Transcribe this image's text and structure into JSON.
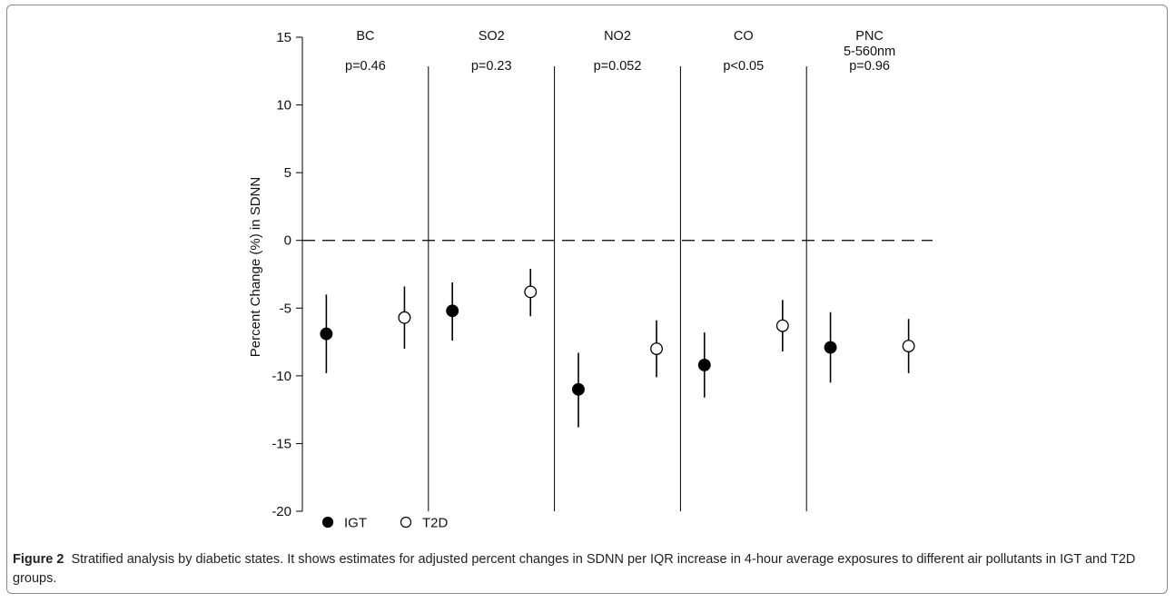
{
  "figure": {
    "label": "Figure 2",
    "caption": "Stratified analysis by diabetic states. It shows estimates for adjusted percent changes in SDNN per IQR increase in 4-hour average exposures to different air pollutants in IGT and T2D groups."
  },
  "chart_data": {
    "type": "scatter",
    "ylabel": "Percent Change (%) in SDNN",
    "ylim": [
      -20,
      15
    ],
    "yticks": [
      15,
      10,
      5,
      0,
      -5,
      -10,
      -15,
      -20
    ],
    "reference_line": 0,
    "legend": {
      "placement": "bottom-left",
      "entries": [
        "IGT",
        "T2D"
      ]
    },
    "panels": [
      {
        "name": "BC",
        "name2": "",
        "pvalue": "p=0.46"
      },
      {
        "name": "SO2",
        "name2": "",
        "pvalue": "p=0.23"
      },
      {
        "name": "NO2",
        "name2": "",
        "pvalue": "p=0.052"
      },
      {
        "name": "CO",
        "name2": "",
        "pvalue": "p<0.05"
      },
      {
        "name": "PNC",
        "name2": "5-560nm",
        "pvalue": "p=0.96"
      }
    ],
    "series": [
      {
        "name": "IGT",
        "marker": "filled-circle",
        "points": [
          {
            "panel": "BC",
            "est": -6.9,
            "lo": -9.8,
            "hi": -4.0
          },
          {
            "panel": "SO2",
            "est": -5.2,
            "lo": -7.4,
            "hi": -3.1
          },
          {
            "panel": "NO2",
            "est": -11.0,
            "lo": -13.8,
            "hi": -8.3
          },
          {
            "panel": "CO",
            "est": -9.2,
            "lo": -11.6,
            "hi": -6.8
          },
          {
            "panel": "PNC",
            "est": -7.9,
            "lo": -10.5,
            "hi": -5.3
          }
        ]
      },
      {
        "name": "T2D",
        "marker": "open-circle",
        "points": [
          {
            "panel": "BC",
            "est": -5.7,
            "lo": -8.0,
            "hi": -3.4
          },
          {
            "panel": "SO2",
            "est": -3.8,
            "lo": -5.6,
            "hi": -2.1
          },
          {
            "panel": "NO2",
            "est": -8.0,
            "lo": -10.1,
            "hi": -5.9
          },
          {
            "panel": "CO",
            "est": -6.3,
            "lo": -8.2,
            "hi": -4.4
          },
          {
            "panel": "PNC",
            "est": -7.8,
            "lo": -9.8,
            "hi": -5.8
          }
        ]
      }
    ]
  }
}
